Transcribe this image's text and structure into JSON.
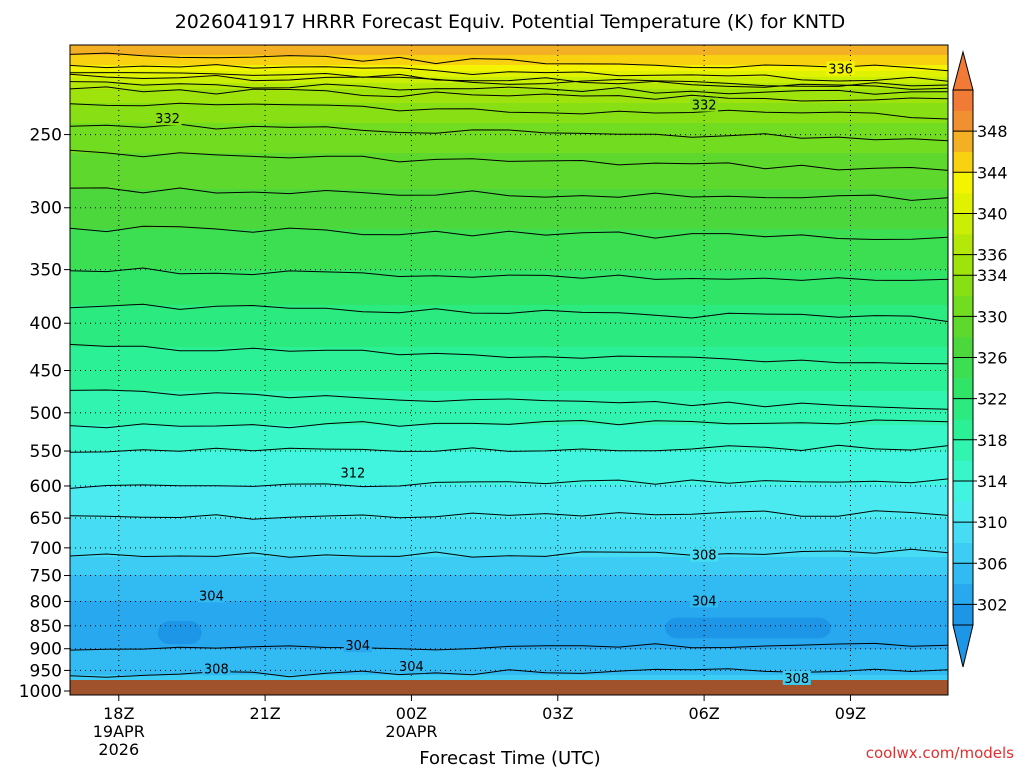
{
  "chart_data": {
    "type": "heatmap",
    "title": "2026041917 HRRR Forecast Equiv. Potential Temperature (K) for KNTD",
    "xlabel": "Forecast Time (UTC)",
    "ylabel": "",
    "x_ticks": [
      {
        "hour": 18,
        "lines": [
          "18Z",
          "19APR",
          "2026"
        ]
      },
      {
        "hour": 21,
        "lines": [
          "21Z"
        ]
      },
      {
        "hour": 24,
        "lines": [
          "00Z",
          "20APR"
        ]
      },
      {
        "hour": 27,
        "lines": [
          "03Z"
        ]
      },
      {
        "hour": 30,
        "lines": [
          "06Z"
        ]
      },
      {
        "hour": 33,
        "lines": [
          "09Z"
        ]
      }
    ],
    "xlim_hours": [
      17,
      35
    ],
    "y_ticks_hpa": [
      250,
      300,
      350,
      400,
      450,
      500,
      550,
      600,
      650,
      700,
      750,
      800,
      850,
      900,
      950,
      1000
    ],
    "y_scale": "log-pressure",
    "ylim_hpa": [
      1010,
      200
    ],
    "grid": "dotted horizontal at pressure ticks, dotted vertical at time ticks",
    "colorbar": {
      "label_values": [
        302,
        306,
        310,
        314,
        318,
        322,
        326,
        330,
        334,
        336,
        340,
        344,
        348
      ],
      "levels": [
        300,
        302,
        304,
        306,
        308,
        310,
        312,
        314,
        316,
        318,
        320,
        322,
        324,
        326,
        328,
        330,
        332,
        334,
        336,
        338,
        340,
        342,
        344,
        346,
        348,
        350
      ],
      "colors": [
        "#1e96e8",
        "#28a8ee",
        "#32baf2",
        "#3cccf4",
        "#46dcf4",
        "#4aeaf0",
        "#40f4e0",
        "#38f6c8",
        "#30f4b0",
        "#2cf096",
        "#2aea80",
        "#30e468",
        "#3cde52",
        "#4cd83c",
        "#5ed82c",
        "#72dc20",
        "#88e014",
        "#9ee40c",
        "#b4e808",
        "#caee04",
        "#e0f200",
        "#f4f400",
        "#f8d210",
        "#f4b024",
        "#f09030",
        "#f07a36"
      ],
      "extend": "both"
    },
    "profile_at_hour_18": [
      {
        "p": 1000,
        "theta_e": 307
      },
      {
        "p": 975,
        "theta_e": 307
      },
      {
        "p": 950,
        "theta_e": 305
      },
      {
        "p": 900,
        "theta_e": 304
      },
      {
        "p": 850,
        "theta_e": 303
      },
      {
        "p": 800,
        "theta_e": 304
      },
      {
        "p": 750,
        "theta_e": 306
      },
      {
        "p": 700,
        "theta_e": 309
      },
      {
        "p": 650,
        "theta_e": 310
      },
      {
        "p": 600,
        "theta_e": 312
      },
      {
        "p": 550,
        "theta_e": 314
      },
      {
        "p": 500,
        "theta_e": 317
      },
      {
        "p": 450,
        "theta_e": 319
      },
      {
        "p": 400,
        "theta_e": 321
      },
      {
        "p": 350,
        "theta_e": 324
      },
      {
        "p": 300,
        "theta_e": 327
      },
      {
        "p": 250,
        "theta_e": 331
      },
      {
        "p": 225,
        "theta_e": 335
      },
      {
        "p": 210,
        "theta_e": 344
      },
      {
        "p": 200,
        "theta_e": 348
      }
    ],
    "contour_labels": [
      {
        "text": "336",
        "hour": 32.8,
        "p": 212
      },
      {
        "text": "332",
        "hour": 30.0,
        "p": 232
      },
      {
        "text": "332",
        "hour": 19.0,
        "p": 240
      },
      {
        "text": "312",
        "hour": 22.8,
        "p": 580
      },
      {
        "text": "308",
        "hour": 30.0,
        "p": 712
      },
      {
        "text": "304",
        "hour": 19.9,
        "p": 788
      },
      {
        "text": "304",
        "hour": 30.0,
        "p": 798
      },
      {
        "text": "304",
        "hour": 22.9,
        "p": 892
      },
      {
        "text": "304",
        "hour": 24.0,
        "p": 940
      },
      {
        "text": "308",
        "hour": 20.0,
        "p": 945
      },
      {
        "text": "308",
        "hour": 31.9,
        "p": 968
      }
    ],
    "terrain_color": "#a0522d"
  },
  "watermark": "coolwx.com/models",
  "colors": {
    "watermark": "#e03030",
    "contour": "#000000",
    "grid": "#000000"
  }
}
